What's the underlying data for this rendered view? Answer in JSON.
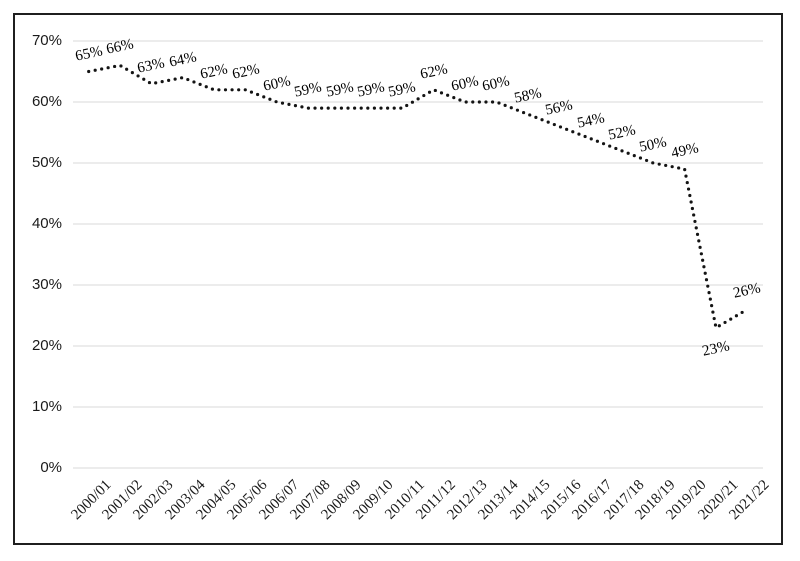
{
  "chart_data": {
    "type": "line",
    "line_style": "dotted",
    "title": "",
    "xlabel": "",
    "ylabel": "",
    "categories": [
      "2000/01",
      "2001/02",
      "2002/03",
      "2003/04",
      "2004/05",
      "2005/06",
      "2006/07",
      "2007/08",
      "2008/09",
      "2009/10",
      "2010/11",
      "2011/12",
      "2012/13",
      "2013/14",
      "2014/15",
      "2015/16",
      "2016/17",
      "2017/18",
      "2018/19",
      "2019/20",
      "2020/21",
      "2021/22"
    ],
    "values": [
      65,
      66,
      63,
      64,
      62,
      62,
      60,
      59,
      59,
      59,
      59,
      62,
      60,
      60,
      58,
      56,
      54,
      52,
      50,
      49,
      23,
      26
    ],
    "data_labels": [
      "65%",
      "66%",
      "63%",
      "64%",
      "62%",
      "62%",
      "60%",
      "59%",
      "59%",
      "59%",
      "59%",
      "62%",
      "60%",
      "60%",
      "58%",
      "56%",
      "54%",
      "52%",
      "50%",
      "49%",
      "23%",
      "26%"
    ],
    "label_below_indices": [
      20
    ],
    "ylim": [
      0,
      70
    ],
    "ytick_step": 10,
    "ytick_labels": [
      "0%",
      "10%",
      "20%",
      "30%",
      "40%",
      "50%",
      "60%",
      "70%"
    ],
    "grid": true,
    "legend_position": "none",
    "colors": {
      "line": "#141414",
      "gridline": "#d9d9d9",
      "text": "#000000",
      "axis_text": "#1a1a1a",
      "border": "#1f1f1f",
      "background": "#ffffff"
    }
  }
}
